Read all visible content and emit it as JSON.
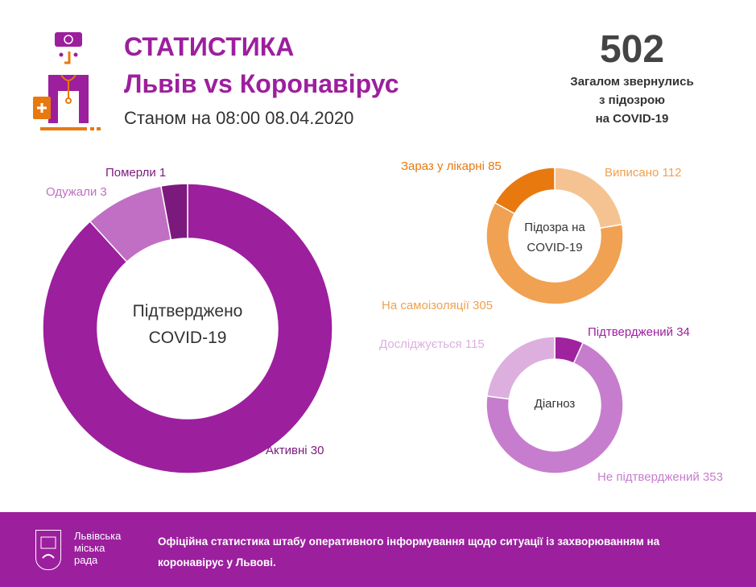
{
  "header": {
    "title": "СТАТИСТИКА",
    "subtitle": "Львів vs Коронавірус",
    "date": "Станом на 08:00 08.04.2020",
    "total": "502",
    "total_label": [
      "Загалом звернулись",
      "з підозрою",
      "на COVID-19"
    ]
  },
  "chart_data": [
    {
      "type": "pie",
      "title": "Підтверджено COVID-19",
      "title_lines": [
        "Підтверджено",
        "COVID-19"
      ],
      "labels": [
        "Активні",
        "Одужали",
        "Померли"
      ],
      "values": [
        30,
        3,
        1
      ],
      "display": [
        "Активні 30",
        "Одужали 3",
        "Померли 1"
      ],
      "colors": [
        "#9c1f9e",
        "#c06fc4",
        "#7b1a7c"
      ]
    },
    {
      "type": "pie",
      "title": "Підозра на COVID-19",
      "title_lines": [
        "Підозра на",
        "COVID-19"
      ],
      "labels": [
        "Виписано",
        "На самоізоляції",
        "Зараз у лікарні"
      ],
      "values": [
        112,
        305,
        85
      ],
      "display": [
        "Виписано 112",
        "На самоізоляції 305",
        "Зараз у лікарні 85"
      ],
      "colors": [
        "#f5c392",
        "#f0a151",
        "#e8790f"
      ]
    },
    {
      "type": "pie",
      "title": "Діагноз",
      "title_lines": [
        "Діагноз"
      ],
      "labels": [
        "Підтверджений",
        "Не підтверджений",
        "Досліджується"
      ],
      "values": [
        34,
        353,
        115
      ],
      "display": [
        "Підтверджений 34",
        "Не підтверджений 353",
        "Досліджується 115"
      ],
      "colors": [
        "#a0229f",
        "#c77dcd",
        "#ddafdf"
      ]
    }
  ],
  "footer": {
    "logo_text": [
      "Львівська",
      "міська",
      "рада"
    ],
    "text": "Офіційна статистика штабу оперативного інформування щодо ситуації із захворюванням на коронавірус у Львові."
  }
}
